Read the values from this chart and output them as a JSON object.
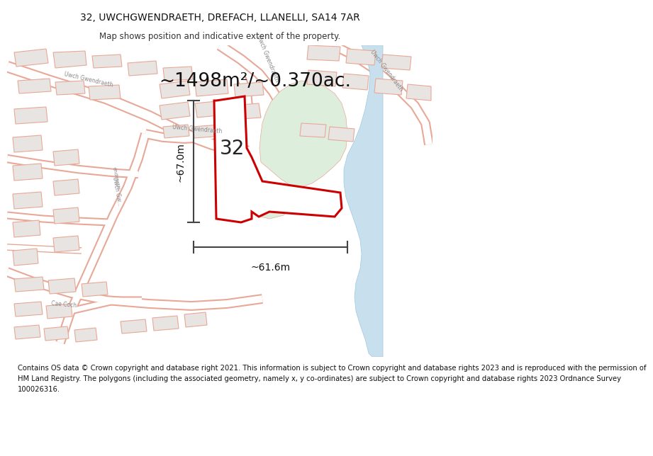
{
  "title_line1": "32, UWCHGWENDRAETH, DREFACH, LLANELLI, SA14 7AR",
  "title_line2": "Map shows position and indicative extent of the property.",
  "area_text": "~1498m²/~0.370ac.",
  "label_32": "32",
  "dim_vertical": "~67.0m",
  "dim_horizontal": "~61.6m",
  "footer_lines": [
    "Contains OS data © Crown copyright and database right 2021. This information is subject to Crown copyright and database rights 2023 and is reproduced with the permission of",
    "HM Land Registry. The polygons (including the associated geometry, namely x, y co-ordinates) are subject to Crown copyright and database rights 2023 Ordnance Survey",
    "100026316."
  ],
  "map_bg": "#f7f5f3",
  "green_area_color": "#ddeedd",
  "water_color": "#c8e0ee",
  "building_face": "#e8e4e2",
  "building_edge": "#e8a898",
  "road_edge": "#e8a898",
  "road_fill": "#ffffff",
  "property_fill": "#ffffff",
  "property_edge": "#cc0000",
  "dim_line_color": "#444444",
  "text_gray": "#888888",
  "title_fontsize": 10,
  "subtitle_fontsize": 8.5,
  "area_fontsize": 19,
  "label_fontsize": 20,
  "dim_fontsize": 10,
  "footer_fontsize": 7.2,
  "street_label_size": 5.5
}
